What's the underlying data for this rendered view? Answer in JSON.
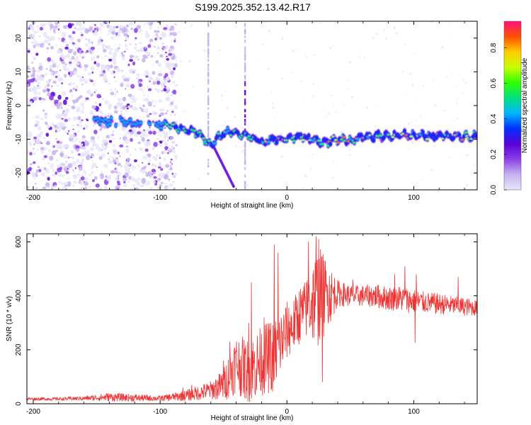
{
  "figure_title": "S199.2025.352.13.42.R17",
  "colors": {
    "snr_line": "#ee3333",
    "axis": "#000000",
    "background": "#ffffff",
    "colormap": [
      "#e6e6fa",
      "#c7b2f0",
      "#8c40e6",
      "#5a00d8",
      "#0030ff",
      "#00b8ff",
      "#00e080",
      "#30ff00",
      "#c8ff00",
      "#ffcc00",
      "#ff5000",
      "#ff1080"
    ]
  },
  "chart_data": [
    {
      "type": "heatmap",
      "title": "S199.2025.352.13.42.R17",
      "xlabel": "Height of straight line (km)",
      "ylabel": "Frequency (Hz)",
      "xlim": [
        -205,
        150
      ],
      "ylim": [
        -25,
        25
      ],
      "xticks": [
        -200,
        -100,
        0,
        100
      ],
      "yticks": [
        -20,
        -10,
        0,
        10,
        20
      ],
      "colorbar": {
        "label": "Normalized spectral amplitude",
        "range": [
          0,
          0.95
        ],
        "ticks": [
          "0.0",
          "0.2",
          "0.4",
          "0.6",
          "0.8"
        ]
      },
      "ridge": {
        "description": "dominant frequency versus height",
        "height_km": [
          -150,
          -140,
          -130,
          -120,
          -110,
          -100,
          -90,
          -80,
          -70,
          -60,
          -50,
          -40,
          -30,
          -20,
          -10,
          0,
          10,
          20,
          30,
          40,
          50,
          60,
          70,
          80,
          90,
          100,
          110,
          120,
          130,
          140,
          150
        ],
        "frequency_hz": [
          -4,
          -5,
          -4.5,
          -5.5,
          -6,
          -5.5,
          -6,
          -7,
          -8,
          -12,
          -8,
          -8,
          -9,
          -11,
          -10,
          -10,
          -9,
          -10,
          -11,
          -10,
          -10.5,
          -9.5,
          -9,
          -9,
          -8.5,
          -9,
          -9,
          -9,
          -9,
          -9,
          -9
        ]
      },
      "streaks": [
        {
          "height_km": -33,
          "frequency_hz": [
            -25,
            25
          ],
          "kind": "vertical noise line"
        },
        {
          "height_km": -62,
          "frequency_hz": [
            -20,
            25
          ],
          "kind": "faint vertical line"
        },
        {
          "from": [
            -58,
            -12
          ],
          "to": [
            -42,
            -24
          ],
          "kind": "diagonal branch"
        }
      ]
    },
    {
      "type": "line",
      "xlabel": "Height of straight line (km)",
      "ylabel": "SNR (10 * v/v)",
      "xlim": [
        -205,
        150
      ],
      "ylim": [
        0,
        630
      ],
      "xticks": [
        -200,
        -100,
        0,
        100
      ],
      "yticks": [
        0,
        200,
        400,
        600
      ],
      "series": [
        {
          "name": "SNR",
          "color": "#ee3333",
          "baseline_x": [
            -205,
            -180,
            -160,
            -140,
            -120,
            -100,
            -80,
            -70,
            -60,
            -50,
            -45,
            -40,
            -30,
            -20,
            -10,
            0,
            5,
            10,
            15,
            20,
            25,
            30,
            40,
            50,
            60,
            70,
            80,
            90,
            100,
            110,
            120,
            130,
            140,
            150
          ],
          "baseline_y": [
            18,
            18,
            20,
            25,
            22,
            20,
            30,
            40,
            50,
            70,
            110,
            150,
            120,
            160,
            180,
            270,
            290,
            330,
            350,
            380,
            400,
            400,
            410,
            400,
            400,
            400,
            390,
            390,
            380,
            375,
            370,
            365,
            360,
            355
          ],
          "noise_amplitude": [
            6,
            6,
            8,
            16,
            14,
            10,
            20,
            28,
            35,
            60,
            90,
            110,
            120,
            130,
            140,
            110,
            100,
            110,
            110,
            160,
            190,
            150,
            50,
            40,
            40,
            45,
            45,
            50,
            45,
            40,
            40,
            35,
            35,
            30
          ],
          "spikes": [
            {
              "x": -82,
              "y": 60
            },
            {
              "x": -75,
              "y": 70
            },
            {
              "x": -50,
              "y": 160
            },
            {
              "x": -45,
              "y": 230
            },
            {
              "x": -30,
              "y": 300
            },
            {
              "x": -28,
              "y": 450
            },
            {
              "x": -18,
              "y": 320
            },
            {
              "x": -10,
              "y": 590
            },
            {
              "x": -7,
              "y": 560
            },
            {
              "x": -12,
              "y": 55
            },
            {
              "x": 4,
              "y": 250
            },
            {
              "x": 17,
              "y": 600
            },
            {
              "x": 20,
              "y": 400
            },
            {
              "x": 23,
              "y": 620
            },
            {
              "x": 25,
              "y": 610
            },
            {
              "x": 28,
              "y": 80
            },
            {
              "x": 32,
              "y": 440
            },
            {
              "x": 52,
              "y": 460
            },
            {
              "x": 85,
              "y": 480
            },
            {
              "x": 93,
              "y": 510
            },
            {
              "x": 102,
              "y": 480
            },
            {
              "x": 101,
              "y": 225
            },
            {
              "x": 135,
              "y": 470
            }
          ]
        }
      ]
    }
  ]
}
